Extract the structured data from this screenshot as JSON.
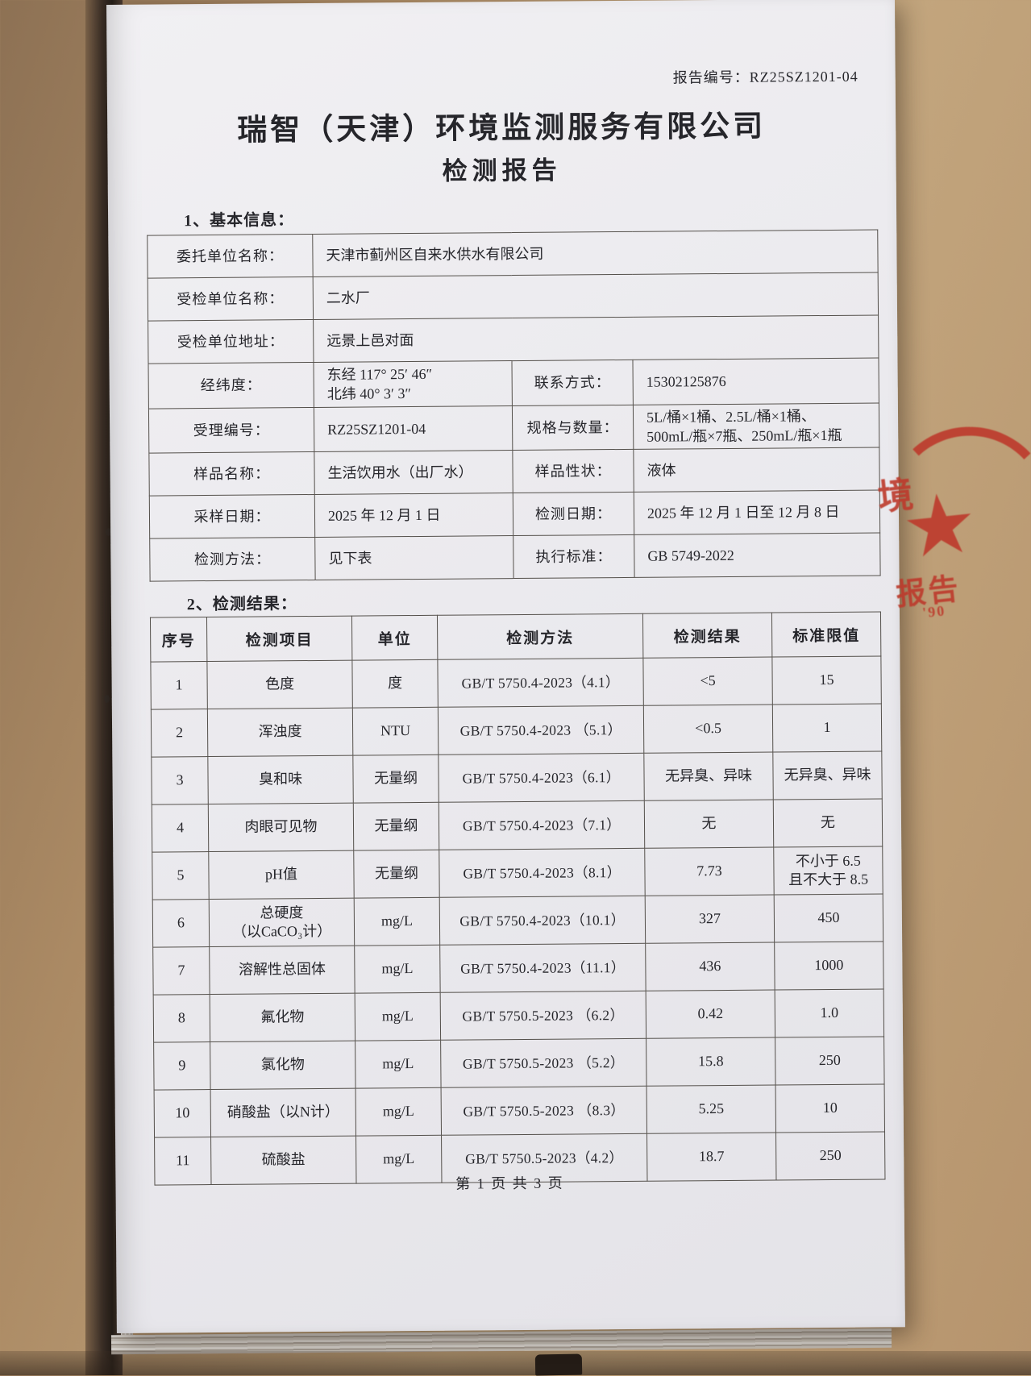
{
  "report": {
    "number_label": "报告编号：",
    "number": "RZ25SZ1201-04",
    "company": "瑞智（天津）环境监测服务有限公司",
    "doc_title": "检测报告",
    "page_footer": "第 1 页 共 3 页"
  },
  "basic_info": {
    "section_title": "1、基本信息：",
    "rows": [
      [
        {
          "type": "label",
          "text": "委托单位名称："
        },
        {
          "type": "value",
          "text": "天津市蓟州区自来水供水有限公司",
          "colspan": 3
        }
      ],
      [
        {
          "type": "label",
          "text": "受检单位名称："
        },
        {
          "type": "value",
          "text": "二水厂",
          "colspan": 3
        }
      ],
      [
        {
          "type": "label",
          "text": "受检单位地址："
        },
        {
          "type": "value",
          "text": "远景上邑对面",
          "colspan": 3
        }
      ],
      [
        {
          "type": "label",
          "text": "经纬度："
        },
        {
          "type": "value",
          "text": "东经 117° 25′ 46″\n北纬 40° 3′ 3″"
        },
        {
          "type": "label",
          "text": "联系方式："
        },
        {
          "type": "value",
          "text": "15302125876"
        }
      ],
      [
        {
          "type": "label",
          "text": "受理编号："
        },
        {
          "type": "value",
          "text": "RZ25SZ1201-04"
        },
        {
          "type": "label",
          "text": "规格与数量："
        },
        {
          "type": "value",
          "text": "5L/桶×1桶、2.5L/桶×1桶、\n500mL/瓶×7瓶、250mL/瓶×1瓶"
        }
      ],
      [
        {
          "type": "label",
          "text": "样品名称："
        },
        {
          "type": "value",
          "text": "生活饮用水（出厂水）"
        },
        {
          "type": "label",
          "text": "样品性状："
        },
        {
          "type": "value",
          "text": "液体"
        }
      ],
      [
        {
          "type": "label",
          "text": "采样日期："
        },
        {
          "type": "value",
          "text": "2025 年 12 月 1 日"
        },
        {
          "type": "label",
          "text": "检测日期："
        },
        {
          "type": "value",
          "text": "2025 年 12 月 1 日至 12 月 8 日"
        }
      ],
      [
        {
          "type": "label",
          "text": "检测方法："
        },
        {
          "type": "value",
          "text": "见下表"
        },
        {
          "type": "label",
          "text": "执行标准："
        },
        {
          "type": "value",
          "text": "GB 5749-2022"
        }
      ]
    ]
  },
  "results": {
    "section_title": "2、检测结果：",
    "headers": [
      "序号",
      "检测项目",
      "单位",
      "检测方法",
      "检测结果",
      "标准限值"
    ],
    "rows": [
      [
        "1",
        "色度",
        "度",
        "GB/T 5750.4-2023（4.1）",
        "<5",
        "15"
      ],
      [
        "2",
        "浑浊度",
        "NTU",
        "GB/T 5750.4-2023 （5.1）",
        "<0.5",
        "1"
      ],
      [
        "3",
        "臭和味",
        "无量纲",
        "GB/T 5750.4-2023（6.1）",
        "无异臭、异味",
        "无异臭、异味"
      ],
      [
        "4",
        "肉眼可见物",
        "无量纲",
        "GB/T 5750.4-2023（7.1）",
        "无",
        "无"
      ],
      [
        "5",
        "pH值",
        "无量纲",
        "GB/T 5750.4-2023（8.1）",
        "7.73",
        "不小于 6.5\n且不大于 8.5"
      ],
      [
        "6",
        "总硬度\n（以CaCO₃计）",
        "mg/L",
        "GB/T 5750.4-2023（10.1）",
        "327",
        "450"
      ],
      [
        "7",
        "溶解性总固体",
        "mg/L",
        "GB/T 5750.4-2023（11.1）",
        "436",
        "1000"
      ],
      [
        "8",
        "氟化物",
        "mg/L",
        "GB/T 5750.5-2023 （6.2）",
        "0.42",
        "1.0"
      ],
      [
        "9",
        "氯化物",
        "mg/L",
        "GB/T 5750.5-2023 （5.2）",
        "15.8",
        "250"
      ],
      [
        "10",
        "硝酸盐（以N计）",
        "mg/L",
        "GB/T 5750.5-2023 （8.3）",
        "5.25",
        "10"
      ],
      [
        "11",
        "硫酸盐",
        "mg/L",
        "GB/T 5750.5-2023（4.2）",
        "18.7",
        "250"
      ]
    ]
  },
  "stamp": {
    "top_char": "境",
    "star": "★",
    "text": "报告",
    "digits": "'90",
    "color": "#bd3a2c"
  },
  "colors": {
    "desk_background": "#ab8a64",
    "page_background": "#ebeaee",
    "text": "#26262b",
    "table_border": "#54504b"
  }
}
